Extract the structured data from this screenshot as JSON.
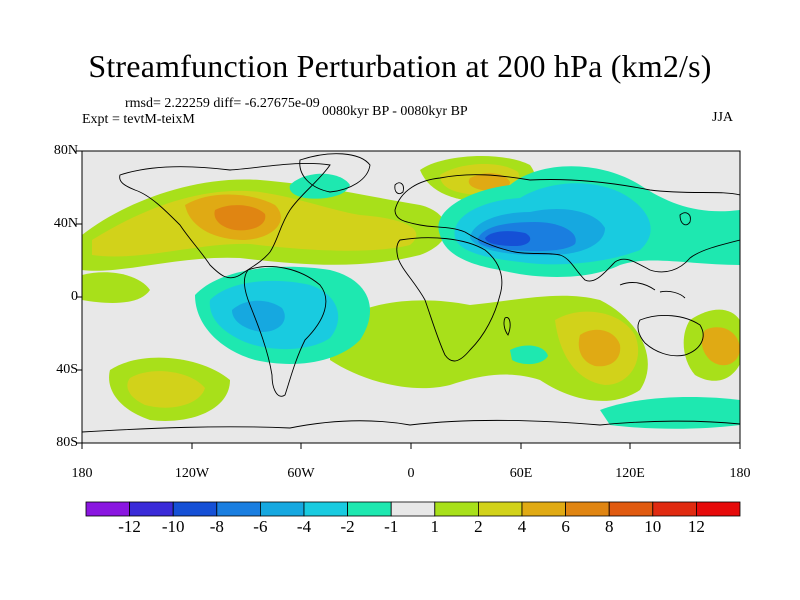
{
  "title": "Streamfunction Perturbation at 200 hPa (km2/s)",
  "stats": "rmsd= 2.22259 diff= -6.27675e-09",
  "experiment": "Expt = tevtM-teixM",
  "period": "0080kyr BP - 0080kyr BP",
  "season": "JJA",
  "lat_ticks": [
    "80N",
    "40N",
    "0",
    "40S",
    "80S"
  ],
  "lon_ticks": [
    "180",
    "120W",
    "60W",
    "0",
    "60E",
    "120E",
    "180"
  ],
  "colorbar": {
    "labels": [
      "-12",
      "-10",
      "-8",
      "-6",
      "-4",
      "-2",
      "-1",
      "1",
      "2",
      "4",
      "6",
      "8",
      "10",
      "12"
    ],
    "colors": [
      "#8a16e0",
      "#3a2bd8",
      "#1550d6",
      "#1a7ee0",
      "#16a8e0",
      "#19cbe0",
      "#1ee8b0",
      "#e8e8e8",
      "#a8e01a",
      "#d2d21a",
      "#e0aa14",
      "#e08512",
      "#e05a10",
      "#e02a10",
      "#e60a0a"
    ]
  },
  "colors": {
    "land_bg": "#e6e6e6",
    "coast": "#000000"
  }
}
